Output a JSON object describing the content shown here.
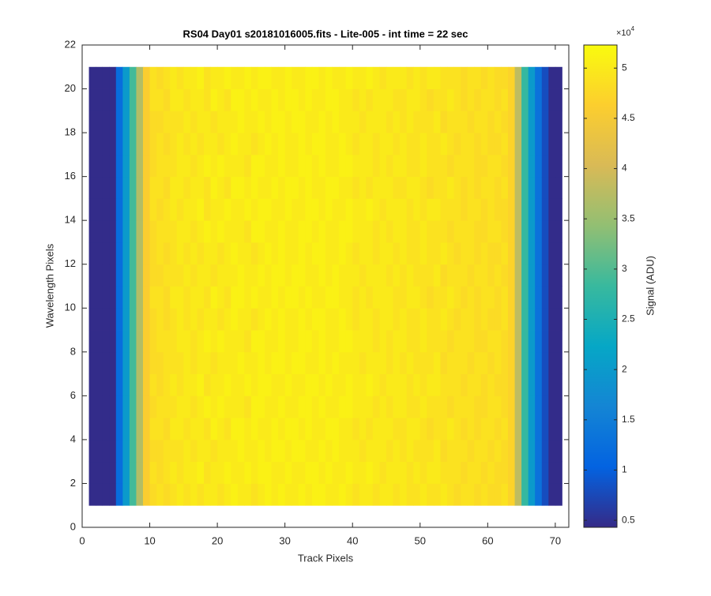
{
  "chart_data": {
    "type": "heatmap",
    "title": "RS04 Day01  s20181016005.fits - Lite-005 - int time = 22 sec",
    "x_label": "Track Pixels",
    "y_label": "Wavelength Pixels",
    "colorbar_label": "Signal (ADU)",
    "colorbar_multiplier": {
      "base": "×10",
      "exponent": "4"
    },
    "xlim": [
      0,
      72
    ],
    "xticks": [
      0,
      10,
      20,
      30,
      40,
      50,
      60,
      70
    ],
    "ylim": [
      0,
      22
    ],
    "yticks": [
      0,
      2,
      4,
      6,
      8,
      10,
      12,
      14,
      16,
      18,
      20,
      22
    ],
    "clim": [
      0.43,
      5.23
    ],
    "cticks": [
      0.5,
      1,
      1.5,
      2,
      2.5,
      3,
      3.5,
      4,
      4.5,
      5
    ],
    "colormap": [
      "#352a87",
      "#0363e1",
      "#1485d4",
      "#06a7c6",
      "#38b99e",
      "#92bf73",
      "#d9ba56",
      "#fcce2e",
      "#f9fb0e"
    ],
    "x_edges": [
      1,
      71
    ],
    "y_edges": [
      1,
      21
    ],
    "z": [
      [
        0.45,
        0.45,
        0.45,
        0.45,
        1.2,
        2.0,
        2.9,
        3.7,
        4.6,
        4.8,
        4.9,
        4.8,
        4.9,
        5.0,
        4.9,
        5.0,
        4.9,
        5.0,
        5.0,
        4.9,
        5.0,
        5.1,
        5.0,
        5.0,
        4.9,
        5.0,
        5.1,
        5.0,
        5.1,
        5.0,
        5.0,
        5.1,
        5.0,
        5.1,
        5.1,
        5.0,
        5.0,
        5.1,
        5.0,
        4.9,
        5.0,
        5.0,
        4.9,
        5.0,
        5.0,
        4.9,
        5.0,
        4.9,
        4.9,
        5.0,
        4.9,
        4.9,
        5.0,
        4.9,
        4.8,
        4.9,
        4.9,
        4.8,
        4.9,
        4.8,
        4.8,
        4.9,
        4.7,
        3.8,
        2.8,
        2.0,
        1.3,
        0.8,
        0.45,
        0.45
      ],
      [
        0.45,
        0.45,
        0.45,
        0.45,
        1.2,
        2.0,
        2.9,
        3.7,
        4.6,
        4.9,
        4.8,
        4.9,
        5.0,
        4.9,
        5.0,
        5.0,
        5.1,
        4.9,
        5.0,
        5.0,
        5.1,
        5.0,
        5.0,
        5.1,
        5.0,
        5.1,
        5.1,
        5.0,
        5.0,
        5.1,
        5.0,
        5.0,
        5.1,
        5.1,
        5.0,
        5.1,
        5.0,
        5.0,
        5.1,
        5.0,
        5.0,
        5.1,
        5.0,
        4.9,
        5.0,
        5.0,
        5.0,
        4.9,
        5.0,
        4.9,
        5.0,
        5.0,
        4.9,
        4.9,
        4.9,
        4.8,
        4.9,
        4.9,
        4.8,
        4.9,
        4.8,
        4.8,
        4.7,
        3.8,
        2.8,
        2.0,
        1.3,
        0.8,
        0.45,
        0.45
      ],
      [
        0.45,
        0.45,
        0.45,
        0.45,
        1.2,
        2.0,
        2.9,
        3.7,
        4.6,
        4.8,
        4.8,
        4.9,
        4.9,
        4.9,
        5.0,
        4.9,
        5.0,
        5.0,
        4.9,
        5.0,
        5.0,
        5.0,
        5.1,
        5.0,
        5.0,
        5.1,
        5.0,
        5.1,
        5.1,
        5.0,
        5.1,
        5.1,
        5.0,
        5.0,
        5.1,
        5.0,
        5.1,
        5.0,
        5.0,
        5.0,
        4.9,
        5.0,
        5.0,
        5.0,
        4.9,
        5.0,
        4.9,
        5.0,
        4.9,
        4.9,
        4.9,
        5.0,
        4.8,
        4.9,
        4.9,
        4.9,
        4.8,
        4.9,
        4.9,
        4.8,
        4.9,
        4.8,
        4.7,
        3.8,
        2.8,
        2.0,
        1.3,
        0.8,
        0.45,
        0.45
      ],
      [
        0.45,
        0.45,
        0.45,
        0.45,
        1.2,
        2.0,
        2.9,
        3.7,
        4.6,
        4.9,
        4.9,
        4.8,
        5.0,
        5.0,
        4.9,
        5.0,
        5.0,
        4.9,
        5.1,
        5.0,
        4.9,
        5.1,
        5.1,
        5.0,
        5.1,
        5.0,
        5.0,
        5.1,
        5.0,
        5.1,
        5.1,
        5.0,
        5.1,
        5.0,
        5.0,
        5.1,
        5.1,
        5.0,
        5.0,
        4.9,
        5.0,
        4.9,
        5.0,
        5.0,
        5.0,
        4.9,
        4.9,
        5.0,
        5.0,
        4.9,
        4.8,
        4.9,
        4.9,
        5.0,
        4.9,
        4.8,
        4.9,
        4.8,
        4.9,
        4.9,
        4.8,
        4.9,
        4.7,
        3.8,
        2.8,
        2.0,
        1.3,
        0.8,
        0.45,
        0.45
      ],
      [
        0.45,
        0.45,
        0.45,
        0.45,
        1.2,
        2.0,
        2.9,
        3.7,
        4.6,
        4.8,
        4.9,
        4.9,
        4.9,
        5.0,
        5.0,
        4.9,
        5.0,
        5.1,
        5.0,
        5.1,
        5.0,
        5.0,
        5.0,
        4.9,
        5.1,
        5.1,
        5.0,
        5.0,
        5.1,
        5.0,
        5.0,
        5.1,
        5.1,
        5.0,
        5.1,
        5.0,
        5.0,
        5.1,
        5.1,
        5.0,
        5.0,
        5.0,
        4.9,
        5.0,
        4.9,
        5.0,
        5.0,
        4.9,
        4.9,
        5.0,
        4.9,
        4.9,
        4.9,
        4.8,
        4.9,
        4.9,
        4.9,
        4.8,
        4.8,
        4.9,
        4.9,
        4.8,
        4.7,
        3.8,
        2.8,
        2.0,
        1.3,
        0.8,
        0.45,
        0.45
      ],
      [
        0.45,
        0.45,
        0.45,
        0.45,
        1.2,
        2.0,
        2.9,
        3.7,
        4.6,
        4.9,
        4.8,
        4.9,
        5.0,
        4.9,
        5.0,
        5.0,
        5.1,
        4.9,
        5.0,
        5.0,
        5.1,
        5.0,
        5.0,
        5.1,
        5.0,
        5.1,
        5.1,
        5.0,
        5.0,
        5.1,
        5.0,
        5.0,
        5.1,
        5.1,
        5.0,
        5.1,
        5.0,
        5.0,
        5.1,
        5.0,
        5.0,
        5.1,
        5.0,
        4.9,
        5.0,
        5.0,
        5.0,
        4.9,
        5.0,
        4.9,
        5.0,
        5.0,
        4.9,
        4.9,
        4.9,
        4.8,
        4.9,
        4.9,
        4.8,
        4.9,
        4.8,
        4.8,
        4.7,
        3.8,
        2.8,
        2.0,
        1.3,
        0.8,
        0.45,
        0.45
      ],
      [
        0.45,
        0.45,
        0.45,
        0.45,
        1.2,
        2.0,
        2.9,
        3.7,
        4.6,
        4.8,
        4.8,
        4.9,
        4.9,
        4.9,
        5.0,
        4.9,
        5.0,
        5.0,
        4.9,
        5.0,
        5.0,
        5.0,
        5.1,
        5.0,
        5.0,
        5.1,
        5.0,
        5.1,
        5.1,
        5.0,
        5.1,
        5.1,
        5.0,
        5.0,
        5.1,
        5.0,
        5.1,
        5.0,
        5.0,
        5.0,
        4.9,
        5.0,
        5.0,
        5.0,
        4.9,
        5.0,
        4.9,
        5.0,
        4.9,
        4.9,
        4.9,
        5.0,
        4.8,
        4.9,
        4.9,
        4.9,
        4.8,
        4.9,
        4.9,
        4.8,
        4.9,
        4.8,
        4.7,
        3.8,
        2.8,
        2.0,
        1.3,
        0.8,
        0.45,
        0.45
      ],
      [
        0.45,
        0.45,
        0.45,
        0.45,
        1.2,
        2.0,
        2.9,
        3.7,
        4.6,
        4.8,
        4.9,
        4.9,
        4.9,
        5.0,
        5.0,
        4.9,
        5.0,
        5.1,
        5.0,
        5.1,
        5.0,
        5.0,
        5.0,
        4.9,
        5.1,
        5.1,
        5.0,
        5.0,
        5.1,
        5.0,
        5.0,
        5.1,
        5.1,
        5.0,
        5.1,
        5.0,
        5.0,
        5.1,
        5.1,
        5.0,
        5.0,
        5.0,
        4.9,
        5.0,
        4.9,
        5.0,
        5.0,
        4.9,
        4.9,
        5.0,
        4.9,
        4.9,
        4.9,
        4.8,
        4.9,
        4.9,
        4.9,
        4.8,
        4.8,
        4.9,
        4.9,
        4.8,
        4.7,
        3.8,
        2.8,
        2.0,
        1.3,
        0.8,
        0.45,
        0.45
      ],
      [
        0.45,
        0.45,
        0.45,
        0.45,
        1.2,
        2.0,
        2.9,
        3.7,
        4.6,
        4.8,
        4.9,
        4.8,
        4.9,
        5.0,
        4.9,
        5.0,
        4.9,
        5.0,
        5.0,
        4.9,
        5.0,
        5.1,
        5.0,
        5.0,
        4.9,
        5.0,
        5.1,
        5.0,
        5.1,
        5.0,
        5.0,
        5.1,
        5.0,
        5.1,
        5.1,
        5.0,
        5.0,
        5.1,
        5.0,
        4.9,
        5.0,
        5.0,
        4.9,
        5.0,
        5.0,
        4.9,
        5.0,
        4.9,
        4.9,
        5.0,
        4.9,
        4.9,
        5.0,
        4.9,
        4.8,
        4.9,
        4.9,
        4.8,
        4.9,
        4.8,
        4.8,
        4.9,
        4.7,
        3.8,
        2.8,
        2.0,
        1.3,
        0.8,
        0.45,
        0.45
      ],
      [
        0.45,
        0.45,
        0.45,
        0.45,
        1.2,
        2.0,
        2.9,
        3.7,
        4.6,
        4.9,
        4.9,
        4.8,
        5.0,
        5.0,
        4.9,
        5.0,
        5.0,
        4.9,
        5.1,
        5.0,
        4.9,
        5.1,
        5.1,
        5.0,
        5.1,
        5.0,
        5.0,
        5.1,
        5.0,
        5.1,
        5.1,
        5.0,
        5.1,
        5.0,
        5.0,
        5.1,
        5.1,
        5.0,
        5.0,
        4.9,
        5.0,
        4.9,
        5.0,
        5.0,
        5.0,
        4.9,
        4.9,
        5.0,
        5.0,
        4.9,
        4.8,
        4.9,
        4.9,
        5.0,
        4.9,
        4.8,
        4.9,
        4.8,
        4.9,
        4.9,
        4.8,
        4.9,
        4.7,
        3.8,
        2.8,
        2.0,
        1.3,
        0.8,
        0.45,
        0.45
      ],
      [
        0.45,
        0.45,
        0.45,
        0.45,
        1.2,
        2.0,
        2.9,
        3.7,
        4.6,
        4.8,
        4.8,
        4.9,
        4.9,
        4.9,
        5.0,
        4.9,
        5.0,
        5.0,
        4.9,
        5.0,
        5.0,
        5.0,
        5.1,
        5.0,
        5.0,
        5.1,
        5.0,
        5.1,
        5.1,
        5.0,
        5.1,
        5.1,
        5.0,
        5.0,
        5.1,
        5.0,
        5.1,
        5.0,
        5.0,
        5.0,
        4.9,
        5.0,
        5.0,
        5.0,
        4.9,
        5.0,
        4.9,
        5.0,
        4.9,
        4.9,
        4.9,
        5.0,
        4.8,
        4.9,
        4.9,
        4.9,
        4.8,
        4.9,
        4.9,
        4.8,
        4.9,
        4.8,
        4.7,
        3.8,
        2.8,
        2.0,
        1.3,
        0.8,
        0.45,
        0.45
      ],
      [
        0.45,
        0.45,
        0.45,
        0.45,
        1.2,
        2.0,
        2.9,
        3.7,
        4.6,
        4.8,
        4.9,
        4.8,
        4.9,
        5.0,
        4.9,
        5.0,
        4.9,
        5.0,
        5.0,
        4.9,
        5.0,
        5.1,
        5.0,
        5.0,
        4.9,
        5.0,
        5.1,
        5.0,
        5.1,
        5.0,
        5.0,
        5.1,
        5.0,
        5.1,
        5.1,
        5.0,
        5.0,
        5.1,
        5.0,
        4.9,
        5.0,
        5.0,
        4.9,
        5.0,
        5.0,
        4.9,
        5.0,
        4.9,
        4.9,
        5.0,
        4.9,
        4.9,
        5.0,
        4.9,
        4.8,
        4.9,
        4.9,
        4.8,
        4.9,
        4.8,
        4.8,
        4.9,
        4.7,
        3.8,
        2.8,
        2.0,
        1.3,
        0.8,
        0.45,
        0.45
      ],
      [
        0.45,
        0.45,
        0.45,
        0.45,
        1.2,
        2.0,
        2.9,
        3.7,
        4.6,
        4.8,
        4.9,
        4.9,
        4.9,
        5.0,
        5.0,
        4.9,
        5.0,
        5.1,
        5.0,
        5.1,
        5.0,
        5.0,
        5.0,
        4.9,
        5.1,
        5.1,
        5.0,
        5.0,
        5.1,
        5.0,
        5.0,
        5.1,
        5.1,
        5.0,
        5.1,
        5.0,
        5.0,
        5.1,
        5.1,
        5.0,
        5.0,
        5.0,
        4.9,
        5.0,
        4.9,
        5.0,
        5.0,
        4.9,
        4.9,
        5.0,
        4.9,
        4.9,
        4.9,
        4.8,
        4.9,
        4.9,
        4.9,
        4.8,
        4.8,
        4.9,
        4.9,
        4.8,
        4.7,
        3.8,
        2.8,
        2.0,
        1.3,
        0.8,
        0.45,
        0.45
      ],
      [
        0.45,
        0.45,
        0.45,
        0.45,
        1.2,
        2.0,
        2.9,
        3.7,
        4.6,
        4.9,
        4.8,
        4.9,
        5.0,
        4.9,
        5.0,
        5.0,
        5.1,
        4.9,
        5.0,
        5.0,
        5.1,
        5.0,
        5.0,
        5.1,
        5.0,
        5.1,
        5.1,
        5.0,
        5.0,
        5.1,
        5.0,
        5.0,
        5.1,
        5.1,
        5.0,
        5.1,
        5.0,
        5.0,
        5.1,
        5.0,
        5.0,
        5.1,
        5.0,
        4.9,
        5.0,
        5.0,
        5.0,
        4.9,
        5.0,
        4.9,
        5.0,
        5.0,
        4.9,
        4.9,
        4.9,
        4.8,
        4.9,
        4.9,
        4.8,
        4.9,
        4.8,
        4.8,
        4.7,
        3.8,
        2.8,
        2.0,
        1.3,
        0.8,
        0.45,
        0.45
      ],
      [
        0.45,
        0.45,
        0.45,
        0.45,
        1.2,
        2.0,
        2.9,
        3.7,
        4.6,
        4.9,
        4.9,
        4.8,
        5.0,
        5.0,
        4.9,
        5.0,
        5.0,
        4.9,
        5.1,
        5.0,
        4.9,
        5.1,
        5.1,
        5.0,
        5.1,
        5.0,
        5.0,
        5.1,
        5.0,
        5.1,
        5.1,
        5.0,
        5.1,
        5.0,
        5.0,
        5.1,
        5.1,
        5.0,
        5.0,
        4.9,
        5.0,
        4.9,
        5.0,
        5.0,
        5.0,
        4.9,
        4.9,
        5.0,
        5.0,
        4.9,
        4.8,
        4.9,
        4.9,
        5.0,
        4.9,
        4.8,
        4.9,
        4.8,
        4.9,
        4.9,
        4.8,
        4.9,
        4.7,
        3.8,
        2.8,
        2.0,
        1.3,
        0.8,
        0.45,
        0.45
      ],
      [
        0.45,
        0.45,
        0.45,
        0.45,
        1.2,
        2.0,
        2.9,
        3.7,
        4.6,
        4.8,
        4.9,
        4.9,
        4.9,
        5.0,
        5.0,
        4.9,
        5.0,
        5.1,
        5.0,
        5.1,
        5.0,
        5.0,
        5.0,
        4.9,
        5.1,
        5.1,
        5.0,
        5.0,
        5.1,
        5.0,
        5.0,
        5.1,
        5.1,
        5.0,
        5.1,
        5.0,
        5.0,
        5.1,
        5.1,
        5.0,
        5.0,
        5.0,
        4.9,
        5.0,
        4.9,
        5.0,
        5.0,
        4.9,
        4.9,
        5.0,
        4.9,
        4.9,
        4.9,
        4.8,
        4.9,
        4.9,
        4.9,
        4.8,
        4.8,
        4.9,
        4.9,
        4.8,
        4.7,
        3.8,
        2.8,
        2.0,
        1.3,
        0.8,
        0.45,
        0.45
      ],
      [
        0.45,
        0.45,
        0.45,
        0.45,
        1.2,
        2.0,
        2.9,
        3.7,
        4.6,
        4.8,
        4.9,
        4.8,
        4.9,
        5.0,
        4.9,
        5.0,
        4.9,
        5.0,
        5.0,
        4.9,
        5.0,
        5.1,
        5.0,
        5.0,
        4.9,
        5.0,
        5.1,
        5.0,
        5.1,
        5.0,
        5.0,
        5.1,
        5.0,
        5.1,
        5.1,
        5.0,
        5.0,
        5.1,
        5.0,
        4.9,
        5.0,
        5.0,
        4.9,
        5.0,
        5.0,
        4.9,
        5.0,
        4.9,
        4.9,
        5.0,
        4.9,
        4.9,
        5.0,
        4.9,
        4.8,
        4.9,
        4.9,
        4.8,
        4.9,
        4.8,
        4.8,
        4.9,
        4.7,
        3.8,
        2.8,
        2.0,
        1.3,
        0.8,
        0.45,
        0.45
      ],
      [
        0.45,
        0.45,
        0.45,
        0.45,
        1.2,
        2.0,
        2.9,
        3.7,
        4.6,
        4.8,
        4.8,
        4.9,
        4.9,
        4.9,
        5.0,
        4.9,
        5.0,
        5.0,
        4.9,
        5.0,
        5.0,
        5.0,
        5.1,
        5.0,
        5.0,
        5.1,
        5.0,
        5.1,
        5.1,
        5.0,
        5.1,
        5.1,
        5.0,
        5.0,
        5.1,
        5.0,
        5.1,
        5.0,
        5.0,
        5.0,
        4.9,
        5.0,
        5.0,
        5.0,
        4.9,
        5.0,
        4.9,
        5.0,
        4.9,
        4.9,
        4.9,
        5.0,
        4.8,
        4.9,
        4.9,
        4.9,
        4.8,
        4.9,
        4.9,
        4.8,
        4.9,
        4.8,
        4.7,
        3.8,
        2.8,
        2.0,
        1.3,
        0.8,
        0.45,
        0.45
      ],
      [
        0.45,
        0.45,
        0.45,
        0.45,
        1.2,
        2.0,
        2.9,
        3.7,
        4.6,
        4.9,
        4.9,
        4.8,
        5.0,
        5.0,
        4.9,
        5.0,
        5.0,
        4.9,
        5.1,
        5.0,
        4.9,
        5.1,
        5.1,
        5.0,
        5.1,
        5.0,
        5.0,
        5.1,
        5.0,
        5.1,
        5.1,
        5.0,
        5.1,
        5.0,
        5.0,
        5.1,
        5.1,
        5.0,
        5.0,
        4.9,
        5.0,
        4.9,
        5.0,
        5.0,
        5.0,
        4.9,
        4.9,
        5.0,
        5.0,
        4.9,
        4.8,
        4.9,
        4.9,
        5.0,
        4.9,
        4.8,
        4.9,
        4.8,
        4.9,
        4.9,
        4.8,
        4.9,
        4.7,
        3.8,
        2.8,
        2.0,
        1.3,
        0.8,
        0.45,
        0.45
      ],
      [
        0.45,
        0.45,
        0.45,
        0.45,
        1.2,
        2.0,
        2.9,
        3.7,
        4.6,
        4.9,
        4.8,
        4.9,
        5.0,
        4.9,
        5.0,
        5.0,
        5.1,
        4.9,
        5.0,
        5.0,
        5.1,
        5.0,
        5.0,
        5.1,
        5.0,
        5.1,
        5.1,
        5.0,
        5.0,
        5.1,
        5.0,
        5.0,
        5.1,
        5.1,
        5.0,
        5.1,
        5.0,
        5.0,
        5.1,
        5.0,
        5.0,
        5.1,
        5.0,
        4.9,
        5.0,
        5.0,
        5.0,
        4.9,
        5.0,
        4.9,
        5.0,
        5.0,
        4.9,
        4.9,
        4.9,
        4.8,
        4.9,
        4.9,
        4.8,
        4.9,
        4.8,
        4.8,
        4.7,
        3.8,
        2.8,
        2.0,
        1.3,
        0.8,
        0.45,
        0.45
      ]
    ]
  }
}
